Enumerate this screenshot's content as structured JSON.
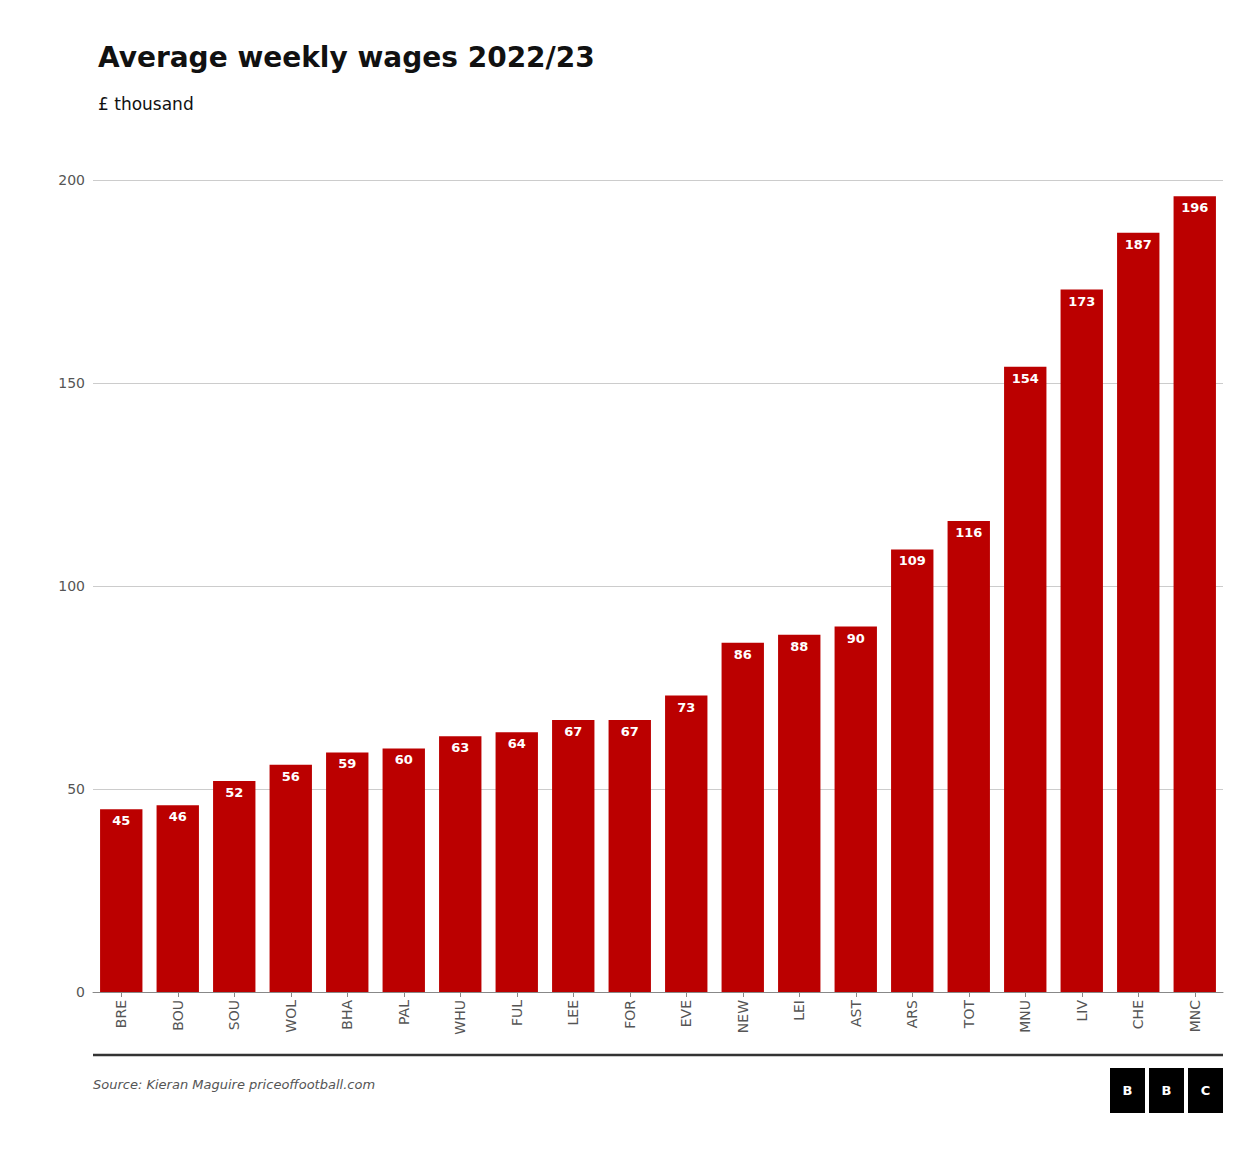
{
  "chart_data": {
    "type": "bar",
    "title": "Average weekly wages 2022/23",
    "subtitle": "£ thousand",
    "annotations": [
      "Source: Kieran Maguire priceoffootball.com",
      "B",
      "B",
      "C"
    ],
    "categories": [
      "BRE",
      "BOU",
      "SOU",
      "WOL",
      "BHA",
      "PAL",
      "WHU",
      "FUL",
      "LEE",
      "FOR",
      "EVE",
      "NEW",
      "LEI",
      "AST",
      "ARS",
      "TOT",
      "MNU",
      "LIV",
      "CHE",
      "MNC"
    ],
    "values": [
      45,
      46,
      52,
      56,
      59,
      60,
      63,
      64,
      67,
      67,
      73,
      86,
      88,
      90,
      109,
      116,
      154,
      173,
      187,
      196
    ],
    "color": "#bb0000",
    "ylim": [
      0,
      200
    ],
    "yticks": [
      0,
      50,
      100,
      150,
      200
    ],
    "grid": true,
    "data_labels": true
  }
}
